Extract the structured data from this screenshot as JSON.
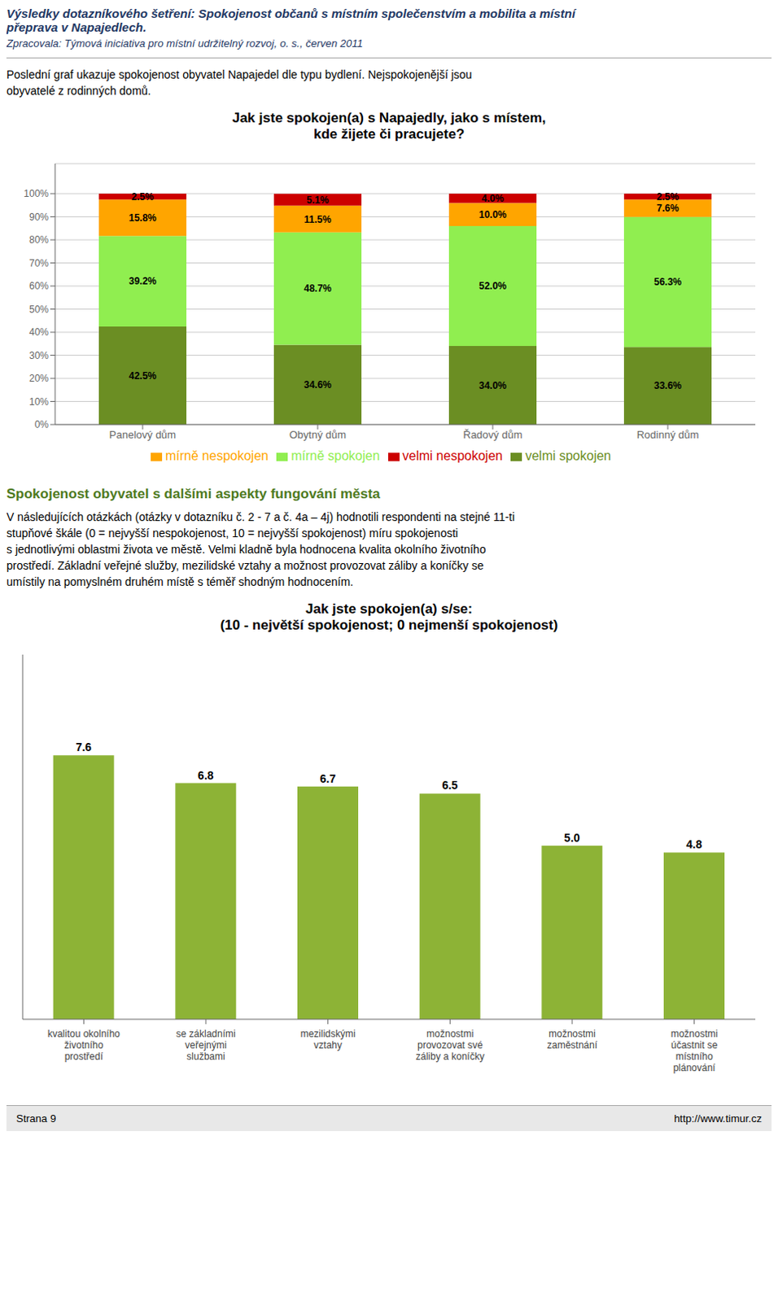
{
  "title": "Výsledky dotazníkového šetření: Spokojenost občanů s místním společenstvím a mobilita a místní\npřeprava v Napajedlech.",
  "subtitle": "Zpracovala: Týmová iniciativa pro místní udržitelný rozvoj, o. s., červen 2011",
  "intro": "Poslední graf ukazuje spokojenost obyvatel Napajedel dle typu bydlení. Nejspokojenější jsou\nobyvatelé z rodinných domů.",
  "section_heading": "Spokojenost obyvatel s dalšími aspekty fungování města",
  "section_body": "V následujících otázkách (otázky v dotazníku č. 2 - 7 a č. 4a – 4j) hodnotili respondenti na stejné 11-ti\nstupňové škále (0 = nejvyšší nespokojenost, 10 = nejvyšší spokojenost) míru spokojenosti\ns jednotlivými oblastmi života ve městě. Velmi kladně byla hodnocena kvalita okolního životního\nprostředí. Základní veřejné služby, mezilidské vztahy a možnost provozovat záliby a koníčky se\numístily na pomyslném druhém místě s téměř shodným hodnocením.",
  "footer_left": "Strana 9",
  "footer_right": "http://www.timur.cz",
  "chart_data": [
    {
      "type": "bar",
      "title": "Jak jste spokojen(a) s Napajedly, jako s místem,\nkde žijete či pracujete?",
      "stacked": true,
      "categories": [
        "Panelový dům",
        "Obytný dům",
        "Řadový dům",
        "Rodinný dům"
      ],
      "series": [
        {
          "name": "velmi spokojen",
          "color": "#6B8E23",
          "values": [
            42.5,
            34.6,
            34.0,
            33.6
          ],
          "value_labels": [
            "42.5%",
            "34.6%",
            "34.0%",
            "33.6%"
          ]
        },
        {
          "name": "mírně spokojen",
          "color": "#90EE50",
          "values": [
            39.2,
            48.7,
            52.0,
            56.3
          ],
          "value_labels": [
            "39.2%",
            "48.7%",
            "52.0%",
            "56.3%"
          ]
        },
        {
          "name": "mírně nespokojen",
          "color": "#FFA500",
          "values": [
            15.8,
            11.5,
            10.0,
            7.6
          ],
          "value_labels": [
            "15.8%",
            "11.5%",
            "10.0%",
            "7.6%"
          ]
        },
        {
          "name": "velmi nespokojen",
          "color": "#CC0000",
          "values": [
            2.5,
            5.1,
            4.0,
            2.5
          ],
          "value_labels": [
            "2.5%",
            "5.1%",
            "4.0%",
            "2.5%"
          ]
        }
      ],
      "ylim": [
        0,
        113
      ],
      "yticks": [
        {
          "value": 0,
          "label": "0%"
        },
        {
          "value": 10,
          "label": "10%"
        },
        {
          "value": 20,
          "label": "20%"
        },
        {
          "value": 30,
          "label": "30%"
        },
        {
          "value": 40,
          "label": "40%"
        },
        {
          "value": 50,
          "label": "50%"
        },
        {
          "value": 60,
          "label": "60%"
        },
        {
          "value": 70,
          "label": "70%"
        },
        {
          "value": 80,
          "label": "80%"
        },
        {
          "value": 90,
          "label": "90%"
        },
        {
          "value": 100,
          "label": "100%"
        }
      ],
      "grid": true,
      "legend": "bottom",
      "data_labels": true
    },
    {
      "type": "bar",
      "title": "Jak jste spokojen(a) s/se:\n(10 - největší spokojenost; 0 nejmenší spokojenost)",
      "categories": [
        "kvalitou okolního\nživotního\nprostředí",
        "se základními\nveřejnými\nslužbami",
        "mezilidskými\nvztahy",
        "možnostmi\nprovozovat své\nzáliby a koníčky",
        "možnostmi\nzaměstnání",
        "možnostmi\núčastnit se\nmístního\nplánování"
      ],
      "values": [
        7.6,
        6.8,
        6.7,
        6.5,
        5.0,
        4.8
      ],
      "value_labels": [
        "7.6",
        "6.8",
        "6.7",
        "6.5",
        "5.0",
        "4.8"
      ],
      "color": "#8DB336",
      "ylim": [
        0,
        10.5
      ],
      "yticks": [],
      "grid": false,
      "tick_labels": "x",
      "data_labels": true
    }
  ]
}
